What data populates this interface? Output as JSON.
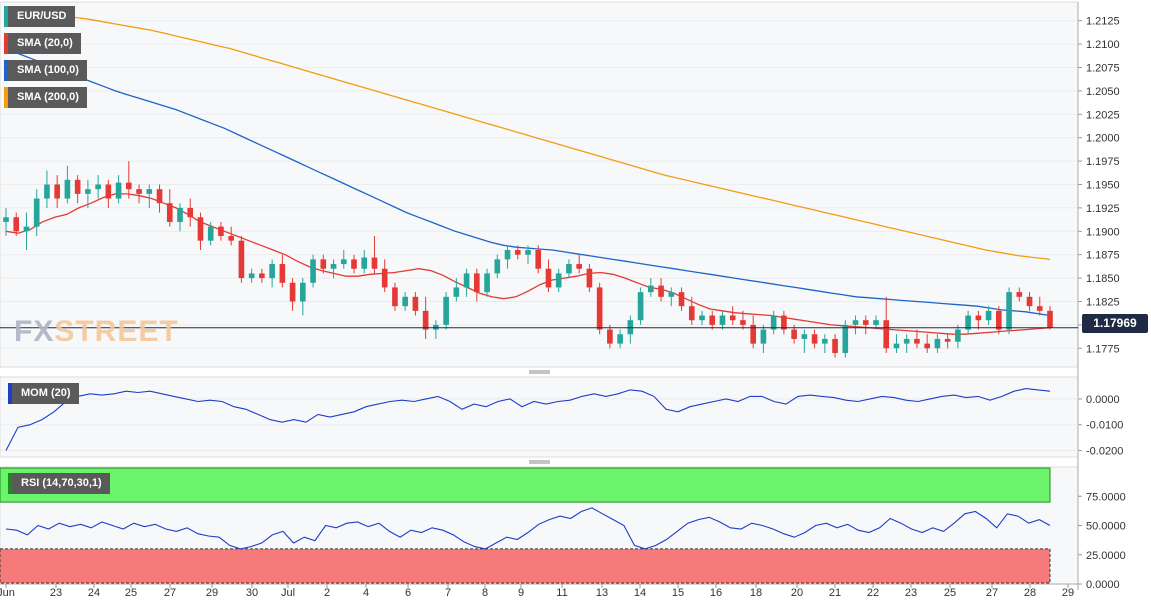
{
  "legend": {
    "symbol": "EUR/USD",
    "sma20": "SMA (20,0)",
    "sma100": "SMA (100,0)",
    "sma200": "SMA (200,0)",
    "mom": "MOM (20)",
    "rsi": "RSI (14,70,30,1)"
  },
  "last_price": "1.17969",
  "logo": {
    "fx": "FX",
    "street": "STREET"
  },
  "colors": {
    "up": "#26a69a",
    "down": "#e53935",
    "sma20": "#e53935",
    "sma100": "#1e64c8",
    "sma200": "#f39c12",
    "mom": "#1e3cc8",
    "rsi": "#1e3cc8",
    "rsi_overbought": "#6cf56c",
    "rsi_oversold": "#f77a7a"
  },
  "x_axis": {
    "labels": [
      "Jun",
      "23",
      "24",
      "25",
      "27",
      "29",
      "30",
      "Jul",
      "2",
      "4",
      "6",
      "7",
      "8",
      "9",
      "11",
      "13",
      "14",
      "15",
      "16",
      "18",
      "20",
      "21",
      "22",
      "23",
      "25",
      "27",
      "28",
      "29"
    ]
  },
  "chart_data": [
    {
      "type": "candlestick",
      "title": "EUR/USD",
      "y_ticks": [
        "1.2125",
        "1.2100",
        "1.2075",
        "1.2050",
        "1.2025",
        "1.2000",
        "1.1975",
        "1.1950",
        "1.1925",
        "1.1900",
        "1.1875",
        "1.1850",
        "1.1825",
        "1.1800",
        "1.1775"
      ],
      "y_tick_values": [
        1.2125,
        1.21,
        1.2075,
        1.205,
        1.2025,
        1.2,
        1.1975,
        1.195,
        1.1925,
        1.19,
        1.1875,
        1.185,
        1.1825,
        1.18,
        1.1775
      ],
      "ylim": [
        1.1755,
        1.2145
      ],
      "current_price": 1.17969,
      "ohlc": [
        [
          1.191,
          1.1925,
          1.1895,
          1.1915
        ],
        [
          1.1915,
          1.192,
          1.1895,
          1.19
        ],
        [
          1.19,
          1.192,
          1.188,
          1.1905
        ],
        [
          1.1905,
          1.1945,
          1.1895,
          1.1935
        ],
        [
          1.1935,
          1.1965,
          1.1925,
          1.195
        ],
        [
          1.195,
          1.196,
          1.1925,
          1.1935
        ],
        [
          1.1935,
          1.197,
          1.193,
          1.1955
        ],
        [
          1.1955,
          1.196,
          1.193,
          1.194
        ],
        [
          1.194,
          1.1955,
          1.1925,
          1.1945
        ],
        [
          1.1945,
          1.196,
          1.1935,
          1.195
        ],
        [
          1.195,
          1.1955,
          1.1925,
          1.1935
        ],
        [
          1.1935,
          1.196,
          1.193,
          1.1952
        ],
        [
          1.1952,
          1.1975,
          1.1935,
          1.1945
        ],
        [
          1.1945,
          1.195,
          1.193,
          1.194
        ],
        [
          1.194,
          1.195,
          1.1925,
          1.1945
        ],
        [
          1.1945,
          1.195,
          1.192,
          1.193
        ],
        [
          1.193,
          1.1945,
          1.1905,
          1.191
        ],
        [
          1.191,
          1.193,
          1.19,
          1.1925
        ],
        [
          1.1925,
          1.1935,
          1.1905,
          1.1915
        ],
        [
          1.1915,
          1.192,
          1.188,
          1.189
        ],
        [
          1.189,
          1.191,
          1.1885,
          1.1905
        ],
        [
          1.1905,
          1.191,
          1.189,
          1.1895
        ],
        [
          1.1895,
          1.1905,
          1.1885,
          1.189
        ],
        [
          1.189,
          1.1895,
          1.1845,
          1.185
        ],
        [
          1.185,
          1.186,
          1.1845,
          1.1855
        ],
        [
          1.1855,
          1.186,
          1.1845,
          1.185
        ],
        [
          1.185,
          1.187,
          1.184,
          1.1865
        ],
        [
          1.1865,
          1.1875,
          1.184,
          1.1845
        ],
        [
          1.1845,
          1.185,
          1.1815,
          1.1825
        ],
        [
          1.1825,
          1.185,
          1.181,
          1.1845
        ],
        [
          1.1845,
          1.1875,
          1.184,
          1.187
        ],
        [
          1.187,
          1.1875,
          1.1855,
          1.186
        ],
        [
          1.186,
          1.187,
          1.185,
          1.1865
        ],
        [
          1.1865,
          1.188,
          1.186,
          1.187
        ],
        [
          1.187,
          1.1875,
          1.1855,
          1.186
        ],
        [
          1.186,
          1.188,
          1.1855,
          1.1872
        ],
        [
          1.1872,
          1.1895,
          1.1855,
          1.186
        ],
        [
          1.186,
          1.187,
          1.1835,
          1.184
        ],
        [
          1.184,
          1.1845,
          1.1815,
          1.182
        ],
        [
          1.182,
          1.1835,
          1.1815,
          1.183
        ],
        [
          1.183,
          1.1835,
          1.181,
          1.1815
        ],
        [
          1.1815,
          1.183,
          1.1785,
          1.1795
        ],
        [
          1.1795,
          1.1805,
          1.1785,
          1.18
        ],
        [
          1.18,
          1.1835,
          1.1795,
          1.183
        ],
        [
          1.183,
          1.185,
          1.1825,
          1.184
        ],
        [
          1.184,
          1.186,
          1.183,
          1.1855
        ],
        [
          1.1855,
          1.186,
          1.1825,
          1.1835
        ],
        [
          1.1835,
          1.186,
          1.183,
          1.1855
        ],
        [
          1.1855,
          1.1875,
          1.185,
          1.187
        ],
        [
          1.187,
          1.1885,
          1.186,
          1.188
        ],
        [
          1.188,
          1.1885,
          1.187,
          1.1875
        ],
        [
          1.1875,
          1.1885,
          1.1865,
          1.188
        ],
        [
          1.188,
          1.1885,
          1.1855,
          1.186
        ],
        [
          1.186,
          1.187,
          1.1835,
          1.184
        ],
        [
          1.184,
          1.186,
          1.1835,
          1.1855
        ],
        [
          1.1855,
          1.187,
          1.185,
          1.1865
        ],
        [
          1.1865,
          1.1875,
          1.1855,
          1.186
        ],
        [
          1.186,
          1.1865,
          1.1835,
          1.184
        ],
        [
          1.184,
          1.1845,
          1.179,
          1.1795
        ],
        [
          1.1795,
          1.18,
          1.1775,
          1.178
        ],
        [
          1.178,
          1.1795,
          1.1775,
          1.179
        ],
        [
          1.179,
          1.181,
          1.178,
          1.1805
        ],
        [
          1.1805,
          1.184,
          1.18,
          1.1835
        ],
        [
          1.1835,
          1.185,
          1.183,
          1.1842
        ],
        [
          1.1842,
          1.185,
          1.1825,
          1.183
        ],
        [
          1.183,
          1.184,
          1.182,
          1.1835
        ],
        [
          1.1835,
          1.184,
          1.1815,
          1.182
        ],
        [
          1.182,
          1.183,
          1.18,
          1.1805
        ],
        [
          1.1805,
          1.1815,
          1.18,
          1.181
        ],
        [
          1.181,
          1.1815,
          1.1795,
          1.18
        ],
        [
          1.18,
          1.1815,
          1.1795,
          1.181
        ],
        [
          1.181,
          1.182,
          1.18,
          1.1805
        ],
        [
          1.1805,
          1.1815,
          1.1795,
          1.18
        ],
        [
          1.18,
          1.181,
          1.1775,
          1.178
        ],
        [
          1.178,
          1.18,
          1.177,
          1.1795
        ],
        [
          1.1795,
          1.1815,
          1.179,
          1.181
        ],
        [
          1.181,
          1.1815,
          1.179,
          1.1795
        ],
        [
          1.1795,
          1.18,
          1.178,
          1.1785
        ],
        [
          1.1785,
          1.1795,
          1.177,
          1.179
        ],
        [
          1.179,
          1.1795,
          1.1775,
          1.178
        ],
        [
          1.178,
          1.179,
          1.177,
          1.1785
        ],
        [
          1.1785,
          1.179,
          1.1765,
          1.177
        ],
        [
          1.177,
          1.1805,
          1.1765,
          1.18
        ],
        [
          1.18,
          1.181,
          1.179,
          1.1805
        ],
        [
          1.1805,
          1.181,
          1.179,
          1.18
        ],
        [
          1.18,
          1.181,
          1.1795,
          1.1805
        ],
        [
          1.1805,
          1.183,
          1.177,
          1.1775
        ],
        [
          1.1775,
          1.179,
          1.177,
          1.178
        ],
        [
          1.178,
          1.179,
          1.177,
          1.1785
        ],
        [
          1.1785,
          1.1795,
          1.1775,
          1.178
        ],
        [
          1.178,
          1.179,
          1.177,
          1.1775
        ],
        [
          1.1775,
          1.179,
          1.177,
          1.1785
        ],
        [
          1.1785,
          1.179,
          1.1775,
          1.1782
        ],
        [
          1.1782,
          1.18,
          1.1775,
          1.1795
        ],
        [
          1.1795,
          1.1815,
          1.179,
          1.181
        ],
        [
          1.181,
          1.1815,
          1.1795,
          1.1805
        ],
        [
          1.1805,
          1.182,
          1.18,
          1.1815
        ],
        [
          1.1815,
          1.182,
          1.179,
          1.1795
        ],
        [
          1.1795,
          1.184,
          1.179,
          1.1835
        ],
        [
          1.1835,
          1.184,
          1.1825,
          1.183
        ],
        [
          1.183,
          1.1835,
          1.1815,
          1.182
        ],
        [
          1.182,
          1.183,
          1.181,
          1.1815
        ],
        [
          1.1815,
          1.182,
          1.1795,
          1.1797
        ]
      ],
      "sma20": [
        1.19,
        1.1898,
        1.1902,
        1.191,
        1.1915,
        1.1918,
        1.1925,
        1.193,
        1.1936,
        1.194,
        1.194,
        1.1938,
        1.1935,
        1.193,
        1.1925,
        1.1918,
        1.191,
        1.1905,
        1.19,
        1.1895,
        1.189,
        1.1885,
        1.188,
        1.1875,
        1.1868,
        1.1862,
        1.1858,
        1.1855,
        1.1852,
        1.1852,
        1.1854,
        1.1855,
        1.1856,
        1.1858,
        1.186,
        1.1858,
        1.1853,
        1.1846,
        1.184,
        1.1834,
        1.183,
        1.1828,
        1.183,
        1.1836,
        1.1843,
        1.1848,
        1.185,
        1.1852,
        1.1855,
        1.1856,
        1.1854,
        1.185,
        1.1845,
        1.184,
        1.1838,
        1.1834,
        1.1828,
        1.1822,
        1.1817,
        1.1815,
        1.1813,
        1.1812,
        1.1811,
        1.181,
        1.1808,
        1.1806,
        1.1804,
        1.1802,
        1.18,
        1.1799,
        1.1798,
        1.1797,
        1.1796,
        1.1795,
        1.1794,
        1.1793,
        1.1792,
        1.1791,
        1.179,
        1.179,
        1.1791,
        1.1792,
        1.1793,
        1.1794,
        1.1795,
        1.1796,
        1.1797
      ],
      "sma100": [
        1.2095,
        1.209,
        1.2085,
        1.208,
        1.2075,
        1.207,
        1.2065,
        1.206,
        1.2055,
        1.205,
        1.2046,
        1.2042,
        1.2038,
        1.2034,
        1.203,
        1.2025,
        1.202,
        1.2015,
        1.201,
        1.2004,
        1.1998,
        1.1992,
        1.1986,
        1.198,
        1.1974,
        1.1968,
        1.1962,
        1.1956,
        1.195,
        1.1944,
        1.1938,
        1.1932,
        1.1926,
        1.192,
        1.1915,
        1.191,
        1.1905,
        1.19,
        1.1896,
        1.1892,
        1.1888,
        1.1885,
        1.1883,
        1.1882,
        1.1881,
        1.188,
        1.1878,
        1.1876,
        1.1874,
        1.1872,
        1.187,
        1.1868,
        1.1866,
        1.1864,
        1.1862,
        1.186,
        1.1858,
        1.1856,
        1.1854,
        1.1852,
        1.185,
        1.1848,
        1.1846,
        1.1844,
        1.1842,
        1.184,
        1.1838,
        1.1836,
        1.1834,
        1.1832,
        1.183,
        1.1829,
        1.1828,
        1.1827,
        1.1826,
        1.1825,
        1.1824,
        1.1823,
        1.1822,
        1.1821,
        1.182,
        1.1818,
        1.1816,
        1.1815,
        1.1814,
        1.1812,
        1.181
      ],
      "sma200": [
        1.2137,
        1.2135,
        1.2133,
        1.2131,
        1.2129,
        1.2127,
        1.2124,
        1.2121,
        1.2118,
        1.2115,
        1.2111,
        1.2107,
        1.2103,
        1.2099,
        1.2095,
        1.209,
        1.2085,
        1.208,
        1.2075,
        1.207,
        1.2065,
        1.206,
        1.2055,
        1.205,
        1.2045,
        1.204,
        1.2035,
        1.203,
        1.2025,
        1.202,
        1.2015,
        1.201,
        1.2005,
        1.2,
        1.1995,
        1.199,
        1.1985,
        1.198,
        1.1975,
        1.197,
        1.1965,
        1.196,
        1.1956,
        1.1952,
        1.1948,
        1.1944,
        1.194,
        1.1936,
        1.1932,
        1.1928,
        1.1924,
        1.192,
        1.1916,
        1.1912,
        1.1908,
        1.1904,
        1.19,
        1.1896,
        1.1892,
        1.1888,
        1.1884,
        1.188,
        1.1877,
        1.1874,
        1.1872,
        1.187
      ]
    },
    {
      "type": "line",
      "title": "MOM (20)",
      "y_ticks": [
        "0.0000",
        "-0.0100",
        "-0.0200"
      ],
      "y_tick_values": [
        0.0,
        -0.01,
        -0.02
      ],
      "ylim": [
        -0.0225,
        0.0085
      ],
      "values": [
        -0.02,
        -0.011,
        -0.01,
        -0.008,
        -0.005,
        -0.001,
        0.001,
        0.002,
        0.0015,
        0.002,
        0.003,
        0.0025,
        0.003,
        0.002,
        0.001,
        0.0,
        -0.001,
        -0.0005,
        -0.001,
        -0.003,
        -0.004,
        -0.006,
        -0.008,
        -0.009,
        -0.008,
        -0.009,
        -0.006,
        -0.007,
        -0.006,
        -0.005,
        -0.003,
        -0.002,
        -0.001,
        -0.0005,
        -0.001,
        0.0,
        0.001,
        -0.001,
        -0.004,
        -0.002,
        -0.003,
        -0.001,
        0.0,
        -0.003,
        -0.001,
        -0.002,
        -0.001,
        -0.0005,
        0.001,
        0.002,
        0.001,
        0.002,
        0.0035,
        0.003,
        0.001,
        -0.004,
        -0.005,
        -0.003,
        -0.002,
        -0.001,
        0.0,
        -0.001,
        0.001,
        0.001,
        -0.001,
        -0.002,
        0.001,
        0.0015,
        0.001,
        0.0005,
        -0.0005,
        -0.001,
        0.0,
        0.001,
        0.0005,
        -0.0005,
        -0.001,
        0.0,
        0.001,
        0.0015,
        0.0005,
        0.001,
        -0.0005,
        0.001,
        0.003,
        0.004,
        0.0035,
        0.003
      ]
    },
    {
      "type": "line",
      "title": "RSI (14,70,30,1)",
      "y_ticks": [
        "75.0000",
        "50.0000",
        "25.0000",
        "0.0000"
      ],
      "y_tick_values": [
        75,
        50,
        25,
        0
      ],
      "ylim": [
        0,
        100
      ],
      "overbought": 70,
      "oversold": 30,
      "values": [
        47,
        46,
        42,
        50,
        47,
        52,
        49,
        51,
        48,
        53,
        50,
        47,
        52,
        49,
        51,
        47,
        45,
        48,
        43,
        41,
        40,
        33,
        30,
        32,
        35,
        42,
        45,
        35,
        40,
        37,
        50,
        48,
        52,
        53,
        49,
        52,
        45,
        40,
        46,
        44,
        48,
        46,
        42,
        36,
        32,
        30,
        35,
        40,
        38,
        44,
        51,
        55,
        58,
        56,
        62,
        65,
        60,
        55,
        50,
        33,
        30,
        33,
        38,
        45,
        52,
        55,
        57,
        53,
        48,
        47,
        52,
        50,
        47,
        43,
        40,
        44,
        50,
        52,
        48,
        51,
        46,
        44,
        48,
        56,
        52,
        47,
        44,
        48,
        45,
        52,
        60,
        62,
        56,
        48,
        60,
        58,
        52,
        55,
        50
      ]
    }
  ]
}
